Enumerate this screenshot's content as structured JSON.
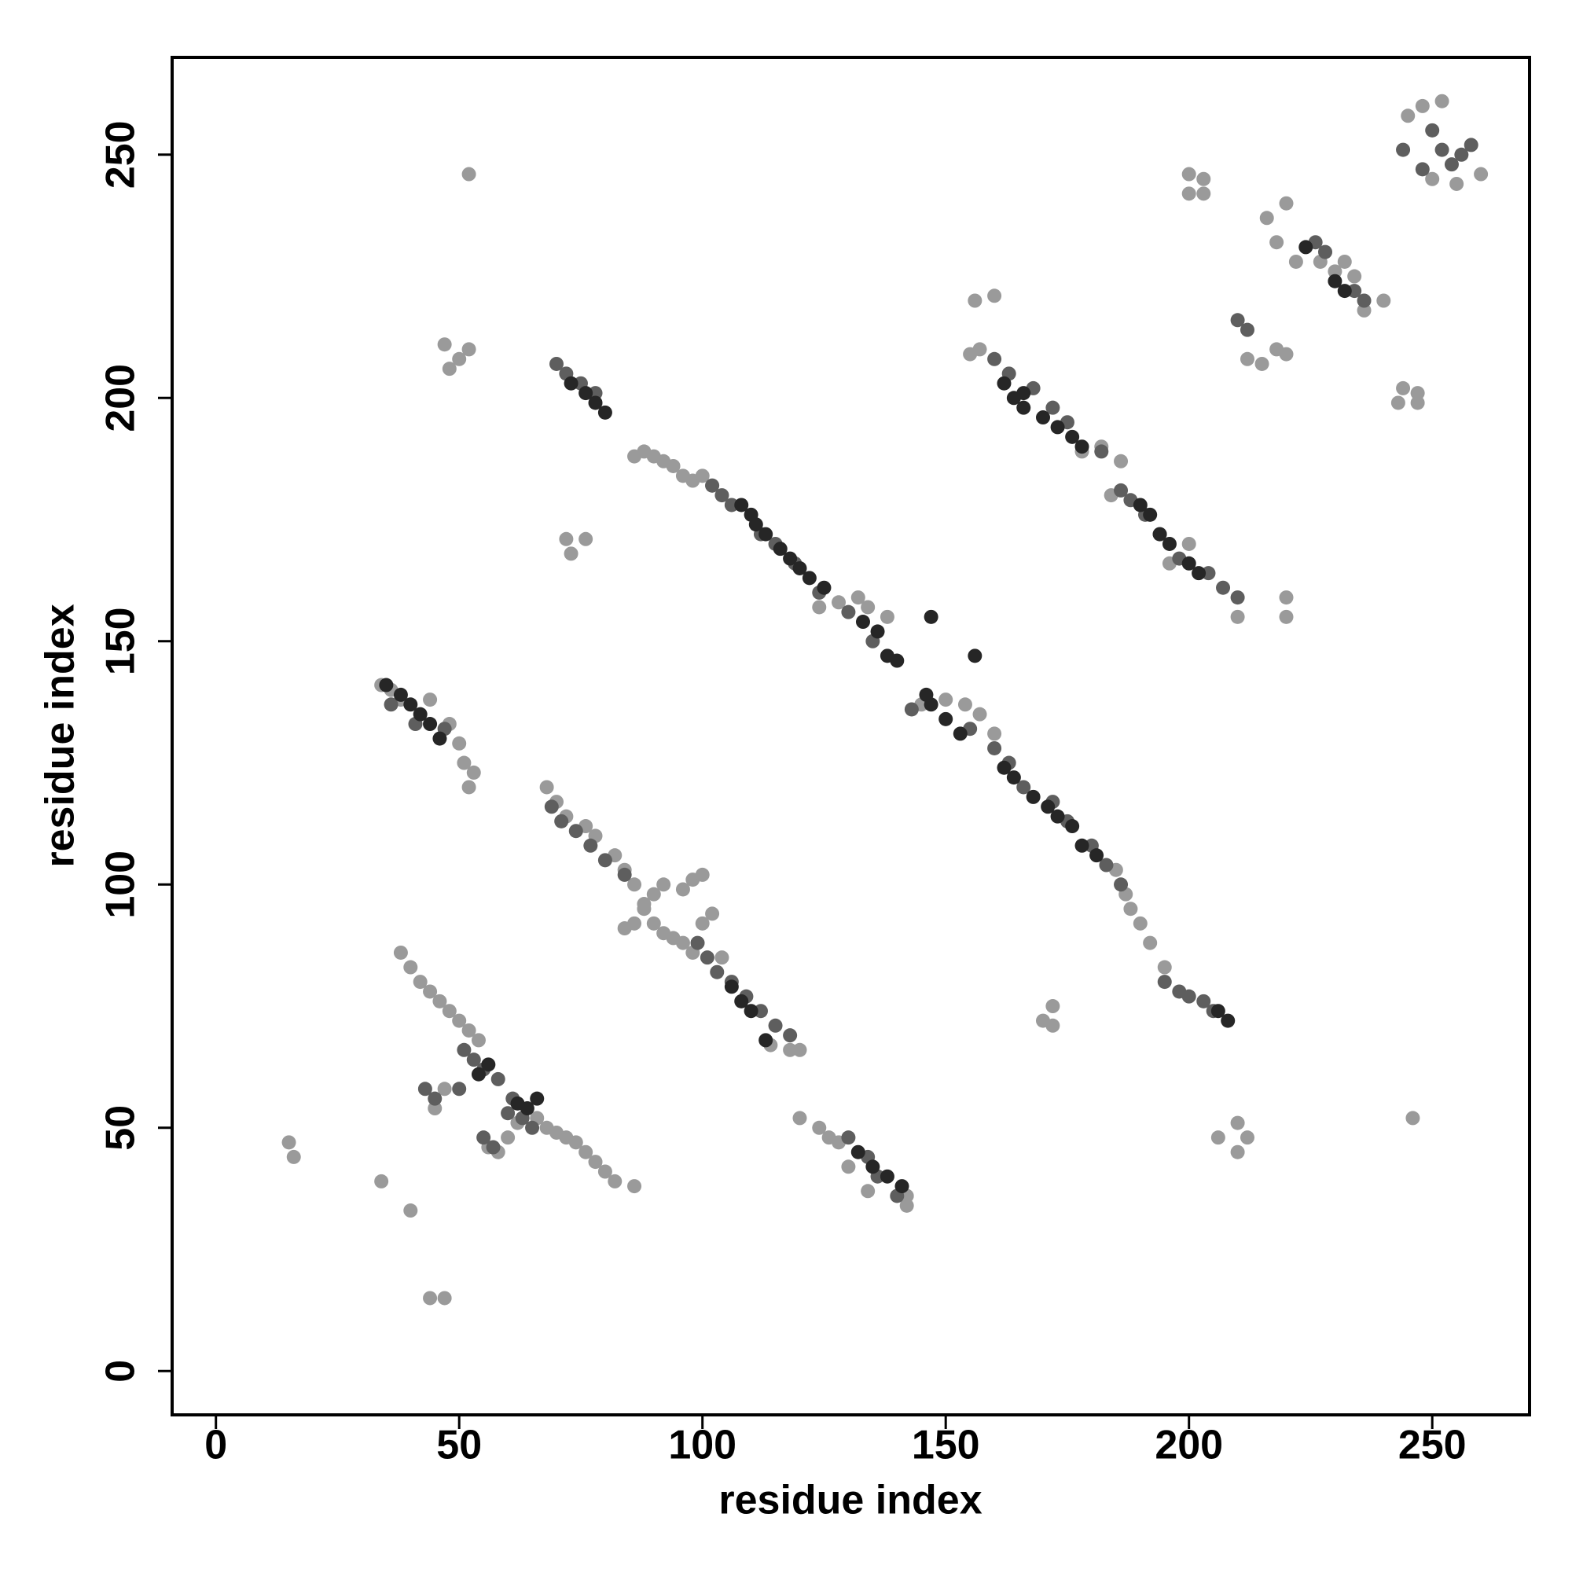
{
  "chart_data": {
    "type": "scatter",
    "x_label": "residue index",
    "y_label": "residue index",
    "xlim": [
      -9,
      270
    ],
    "ylim": [
      -9,
      270
    ],
    "xticks": [
      0,
      50,
      100,
      150,
      200,
      250
    ],
    "yticks": [
      0,
      50,
      100,
      150,
      200,
      250
    ],
    "series": [
      {
        "color": "#9a9a9a",
        "x": [
          86,
          88,
          90,
          92,
          94,
          96,
          98,
          100,
          102,
          124,
          128,
          132,
          134,
          138,
          145,
          150,
          154,
          157,
          160,
          185,
          187,
          188,
          190,
          192,
          195,
          34,
          36,
          38,
          44,
          48,
          50,
          51,
          53,
          52,
          68,
          70,
          72,
          76,
          78,
          82,
          84,
          86,
          88,
          90,
          92,
          94,
          96,
          98,
          100,
          92,
          90,
          88,
          86,
          84,
          96,
          98,
          100,
          102,
          104,
          120,
          118,
          114,
          40,
          38,
          42,
          44,
          46,
          48,
          50,
          52,
          54,
          47,
          45,
          56,
          58,
          60,
          62,
          66,
          68,
          70,
          72,
          74,
          76,
          78,
          80,
          82,
          86,
          15,
          16,
          34,
          40,
          44,
          47,
          52,
          47,
          50,
          52,
          48,
          72,
          76,
          73,
          156,
          155,
          160,
          157,
          178,
          182,
          186,
          184,
          196,
          200,
          210,
          220,
          220,
          200,
          203,
          200,
          203,
          216,
          220,
          218,
          222,
          227,
          230,
          232,
          234,
          236,
          240,
          212,
          215,
          218,
          220,
          244,
          247,
          243,
          247,
          245,
          248,
          252,
          250,
          255,
          260,
          170,
          172,
          172,
          206,
          210,
          210,
          212,
          246,
          120,
          124,
          126,
          128,
          134,
          142,
          142,
          130
        ],
        "values": [
          188,
          189,
          188,
          187,
          186,
          184,
          183,
          184,
          182,
          157,
          158,
          159,
          157,
          155,
          137,
          138,
          137,
          135,
          131,
          103,
          98,
          95,
          92,
          88,
          83,
          141,
          140,
          138,
          138,
          133,
          129,
          125,
          123,
          120,
          120,
          117,
          114,
          112,
          110,
          106,
          103,
          100,
          96,
          92,
          90,
          89,
          99,
          101,
          102,
          100,
          98,
          95,
          92,
          91,
          88,
          86,
          92,
          94,
          85,
          66,
          66,
          67,
          83,
          86,
          80,
          78,
          76,
          74,
          72,
          70,
          68,
          58,
          54,
          46,
          45,
          48,
          51,
          52,
          50,
          49,
          48,
          47,
          45,
          43,
          41,
          39,
          38,
          47,
          44,
          39,
          33,
          15,
          15,
          246,
          211,
          208,
          210,
          206,
          171,
          171,
          168,
          220,
          209,
          221,
          210,
          189,
          190,
          187,
          180,
          166,
          170,
          155,
          159,
          155,
          246,
          245,
          242,
          242,
          237,
          240,
          232,
          228,
          228,
          226,
          228,
          225,
          218,
          220,
          208,
          207,
          210,
          209,
          202,
          201,
          199,
          199,
          258,
          260,
          261,
          245,
          244,
          246,
          72,
          75,
          71,
          48,
          51,
          45,
          48,
          52,
          52,
          50,
          48,
          47,
          37,
          34,
          36,
          42
        ]
      },
      {
        "color": "#5e5e5e",
        "x": [
          70,
          72,
          75,
          78,
          102,
          104,
          106,
          112,
          115,
          119,
          124,
          130,
          135,
          143,
          155,
          160,
          163,
          166,
          172,
          175,
          180,
          183,
          186,
          195,
          198,
          200,
          203,
          205,
          69,
          71,
          74,
          77,
          80,
          84,
          99,
          101,
          103,
          106,
          109,
          112,
          115,
          118,
          160,
          163,
          168,
          172,
          175,
          182,
          186,
          188,
          191,
          194,
          198,
          204,
          207,
          210,
          36,
          41,
          47,
          51,
          53,
          55,
          58,
          60,
          61,
          63,
          65,
          50,
          45,
          43,
          55,
          57,
          130,
          134,
          136,
          140,
          226,
          228,
          234,
          236,
          210,
          212,
          250,
          252,
          254,
          256,
          258,
          248,
          244
        ],
        "values": [
          207,
          205,
          203,
          201,
          182,
          180,
          178,
          172,
          170,
          166,
          160,
          156,
          150,
          136,
          132,
          128,
          125,
          120,
          117,
          113,
          108,
          104,
          100,
          80,
          78,
          77,
          76,
          74,
          116,
          113,
          111,
          108,
          105,
          102,
          88,
          85,
          82,
          80,
          77,
          74,
          71,
          69,
          208,
          205,
          202,
          198,
          195,
          189,
          181,
          179,
          176,
          172,
          167,
          164,
          161,
          159,
          137,
          133,
          132,
          66,
          64,
          62,
          60,
          53,
          56,
          52,
          50,
          58,
          56,
          58,
          48,
          46,
          48,
          44,
          40,
          36,
          232,
          230,
          222,
          220,
          216,
          214,
          255,
          251,
          248,
          250,
          252,
          247,
          251
        ]
      },
      {
        "color": "#262626",
        "x": [
          108,
          110,
          111,
          113,
          116,
          118,
          120,
          122,
          125,
          133,
          136,
          138,
          140,
          146,
          147,
          150,
          153,
          162,
          164,
          168,
          171,
          173,
          176,
          178,
          181,
          35,
          38,
          40,
          42,
          44,
          46,
          56,
          54,
          62,
          64,
          66,
          164,
          166,
          170,
          173,
          176,
          178,
          190,
          192,
          194,
          196,
          200,
          202,
          132,
          135,
          138,
          141,
          113,
          110,
          108,
          106,
          166,
          162,
          73,
          76,
          78,
          80,
          147,
          156,
          224,
          230,
          232,
          206,
          208
        ],
        "values": [
          178,
          176,
          174,
          172,
          169,
          167,
          165,
          163,
          161,
          154,
          152,
          147,
          146,
          139,
          137,
          134,
          131,
          124,
          122,
          118,
          116,
          114,
          112,
          108,
          106,
          141,
          139,
          137,
          135,
          133,
          130,
          63,
          61,
          55,
          54,
          56,
          200,
          198,
          196,
          194,
          192,
          190,
          178,
          176,
          172,
          170,
          166,
          164,
          45,
          42,
          40,
          38,
          68,
          74,
          76,
          79,
          201,
          203,
          203,
          201,
          199,
          197,
          155,
          147,
          231,
          224,
          222,
          74,
          72
        ]
      }
    ]
  }
}
